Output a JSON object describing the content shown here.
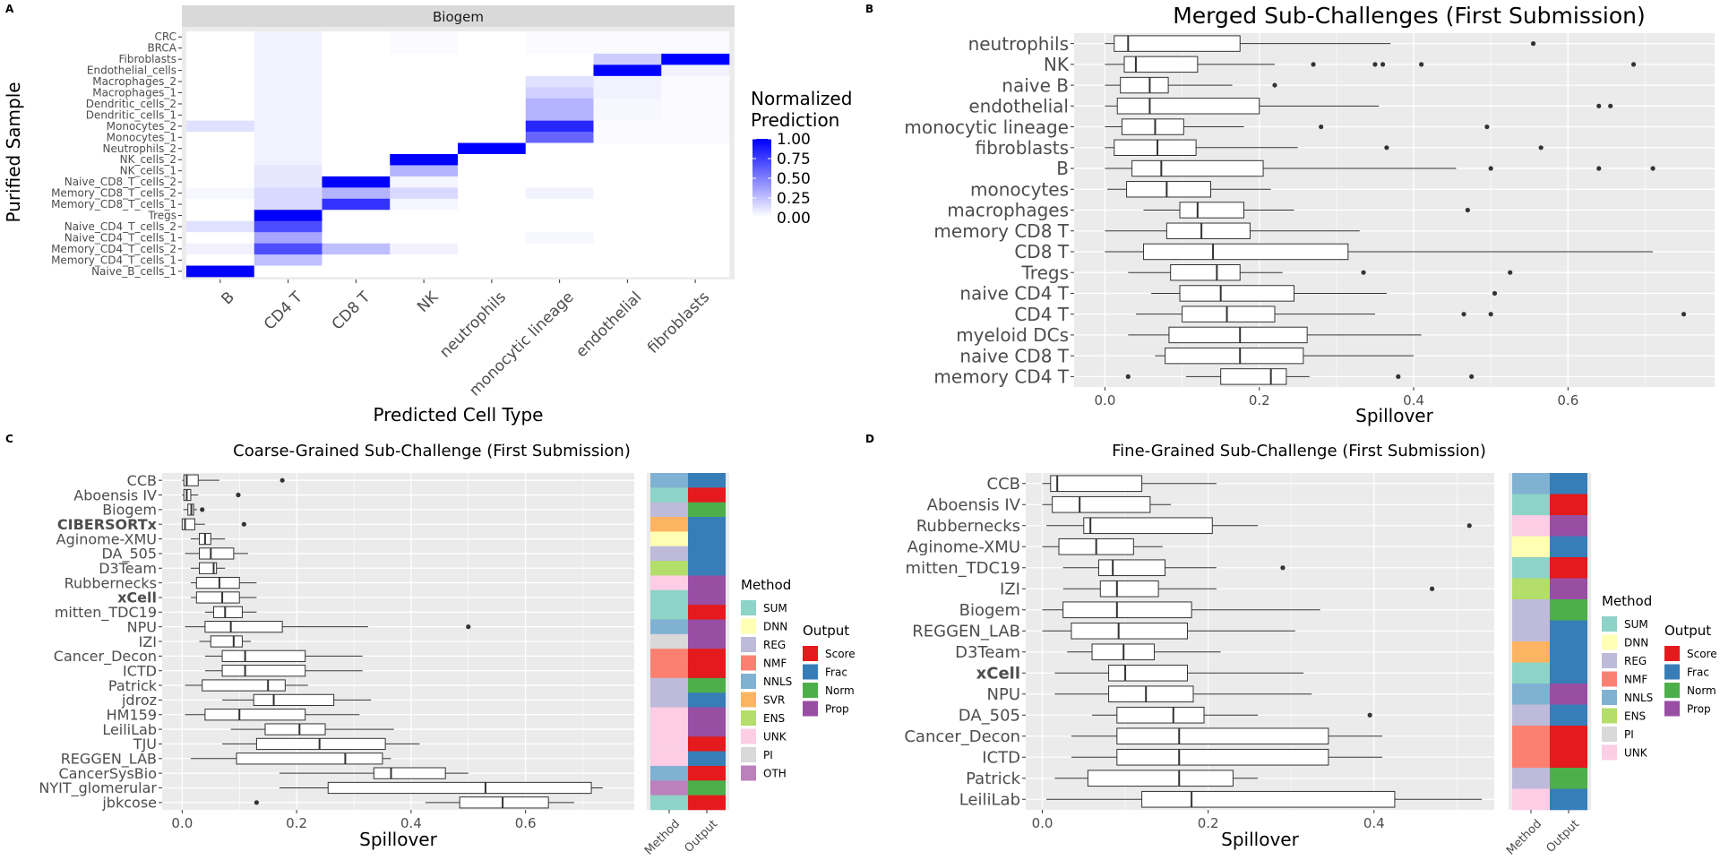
{
  "panels": {
    "A": {
      "tag": "A",
      "strip": "Biogem",
      "xlabel": "Predicted Cell Type",
      "ylabel": "Purified Sample",
      "legend_title": [
        "Normalized",
        "Prediction"
      ],
      "legend_ticks": [
        "1.00",
        "0.75",
        "0.50",
        "0.25",
        "0.00"
      ]
    },
    "B": {
      "tag": "B",
      "title": "Merged Sub-Challenges (First Submission)",
      "xlabel": "Spillover"
    },
    "C": {
      "tag": "C",
      "title": "Coarse-Grained Sub-Challenge (First Submission)",
      "xlabel": "Spillover",
      "side_labels": [
        "Method",
        "Output"
      ],
      "method_title": "Method",
      "output_title": "Output"
    },
    "D": {
      "tag": "D",
      "title": "Fine-Grained Sub-Challenge (First Submission)",
      "xlabel": "Spillover",
      "side_labels": [
        "Method",
        "Output"
      ],
      "method_title": "Method",
      "output_title": "Output"
    }
  },
  "colors": {
    "panel_bg": "#ebebeb",
    "grid": "#ffffff",
    "strip_bg": "#d9d9d9",
    "heat_high": "#0000ff",
    "methods": {
      "SUM": "#8dd3c7",
      "DNN": "#ffffb3",
      "REG": "#bebada",
      "NMF": "#fb8072",
      "NNLS": "#80b1d3",
      "SVR": "#fdb462",
      "ENS": "#b3de69",
      "UNK": "#fccde5",
      "PI": "#d9d9d9",
      "OTH": "#bc80bd"
    },
    "outputs": {
      "Score": "#e41a1c",
      "Frac": "#377eb8",
      "Norm": "#4daf4a",
      "Prop": "#984ea3"
    }
  },
  "chart_data": [
    {
      "id": "A",
      "type": "heatmap",
      "columns": [
        "B",
        "CD4 T",
        "CD8 T",
        "NK",
        "neutrophils",
        "monocytic lineage",
        "endothelial",
        "fibroblasts"
      ],
      "rows": [
        "CRC",
        "BRCA",
        "Fibroblasts",
        "Endothelial_cells",
        "Macrophages_2",
        "Macrophages_1",
        "Dendritic_cells_2",
        "Dendritic_cells_1",
        "Monocytes_2",
        "Monocytes_1",
        "Neutrophils_2",
        "NK_cells_2",
        "NK_cells_1",
        "Naive_CD8_T_cells_2",
        "Memory_CD8_T_cells_2",
        "Memory_CD8_T_cells_1",
        "Tregs",
        "Naive_CD4_T_cells_2",
        "Naive_CD4_T_cells_1",
        "Memory_CD4_T_cells_2",
        "Memory_CD4_T_cells_1",
        "Naive_B_cells_1"
      ],
      "values": [
        [
          0.0,
          0.05,
          0.0,
          0.02,
          0.0,
          0.02,
          0.02,
          0.02
        ],
        [
          0.0,
          0.05,
          0.0,
          0.02,
          0.0,
          0.02,
          0.02,
          0.02
        ],
        [
          0.0,
          0.05,
          0.0,
          0.0,
          0.0,
          0.0,
          0.2,
          1.0
        ],
        [
          0.0,
          0.05,
          0.0,
          0.0,
          0.0,
          0.0,
          1.0,
          0.05
        ],
        [
          0.0,
          0.05,
          0.0,
          0.0,
          0.0,
          0.12,
          0.05,
          0.02
        ],
        [
          0.0,
          0.05,
          0.0,
          0.0,
          0.0,
          0.18,
          0.05,
          0.02
        ],
        [
          0.0,
          0.05,
          0.0,
          0.0,
          0.0,
          0.3,
          0.03,
          0.02
        ],
        [
          0.0,
          0.05,
          0.0,
          0.0,
          0.0,
          0.3,
          0.03,
          0.02
        ],
        [
          0.12,
          0.05,
          0.0,
          0.0,
          0.0,
          0.85,
          0.02,
          0.02
        ],
        [
          0.0,
          0.05,
          0.0,
          0.0,
          0.0,
          0.6,
          0.02,
          0.02
        ],
        [
          0.0,
          0.05,
          0.0,
          0.0,
          1.0,
          0.0,
          0.0,
          0.0
        ],
        [
          0.0,
          0.05,
          0.0,
          1.0,
          0.0,
          0.0,
          0.0,
          0.0
        ],
        [
          0.0,
          0.1,
          0.0,
          0.3,
          0.0,
          0.0,
          0.0,
          0.0
        ],
        [
          0.0,
          0.1,
          1.0,
          0.04,
          0.0,
          0.0,
          0.0,
          0.0
        ],
        [
          0.03,
          0.15,
          0.3,
          0.15,
          0.0,
          0.05,
          0.0,
          0.0
        ],
        [
          0.0,
          0.15,
          0.8,
          0.04,
          0.0,
          0.0,
          0.0,
          0.0
        ],
        [
          0.0,
          1.0,
          0.0,
          0.0,
          0.0,
          0.0,
          0.0,
          0.0
        ],
        [
          0.12,
          0.7,
          0.0,
          0.0,
          0.0,
          0.0,
          0.0,
          0.0
        ],
        [
          0.0,
          0.35,
          0.0,
          0.0,
          0.0,
          0.03,
          0.0,
          0.0
        ],
        [
          0.05,
          0.7,
          0.25,
          0.05,
          0.0,
          0.0,
          0.0,
          0.0
        ],
        [
          0.0,
          0.25,
          0.0,
          0.0,
          0.0,
          0.0,
          0.0,
          0.0
        ],
        [
          1.0,
          0.0,
          0.0,
          0.0,
          0.0,
          0.0,
          0.0,
          0.0
        ]
      ],
      "legend_range": [
        0,
        1
      ]
    },
    {
      "id": "B",
      "type": "boxplot",
      "orientation": "horizontal",
      "xlim": [
        -0.04,
        0.79
      ],
      "xticks": [
        0.0,
        0.2,
        0.4,
        0.6
      ],
      "xtick_labels": [
        "0.0",
        "0.2",
        "0.4",
        "0.6"
      ],
      "categories": [
        "neutrophils",
        "NK",
        "naive B",
        "endothelial",
        "monocytic lineage",
        "fibroblasts",
        "B",
        "monocytes",
        "macrophages",
        "memory CD8 T",
        "CD8 T",
        "Tregs",
        "naive CD4 T",
        "CD4 T",
        "myeloid DCs",
        "naive CD8 T",
        "memory CD4 T"
      ],
      "boxes": [
        {
          "wmin": 0.0,
          "q1": 0.012,
          "median": 0.03,
          "q3": 0.175,
          "wmax": 0.37,
          "outliers": [
            0.555
          ]
        },
        {
          "wmin": 0.0,
          "q1": 0.025,
          "median": 0.04,
          "q3": 0.12,
          "wmax": 0.22,
          "outliers": [
            0.27,
            0.35,
            0.36,
            0.41,
            0.685
          ]
        },
        {
          "wmin": 0.0,
          "q1": 0.02,
          "median": 0.058,
          "q3": 0.082,
          "wmax": 0.165,
          "outliers": [
            0.22
          ]
        },
        {
          "wmin": 0.0,
          "q1": 0.016,
          "median": 0.058,
          "q3": 0.2,
          "wmax": 0.355,
          "outliers": [
            0.64,
            0.655
          ]
        },
        {
          "wmin": 0.0,
          "q1": 0.022,
          "median": 0.065,
          "q3": 0.102,
          "wmax": 0.18,
          "outliers": [
            0.28,
            0.495
          ]
        },
        {
          "wmin": 0.0,
          "q1": 0.012,
          "median": 0.068,
          "q3": 0.118,
          "wmax": 0.25,
          "outliers": [
            0.365,
            0.565
          ]
        },
        {
          "wmin": 0.0,
          "q1": 0.035,
          "median": 0.073,
          "q3": 0.205,
          "wmax": 0.455,
          "outliers": [
            0.5,
            0.64,
            0.71
          ]
        },
        {
          "wmin": 0.003,
          "q1": 0.028,
          "median": 0.08,
          "q3": 0.137,
          "wmax": 0.215,
          "outliers": []
        },
        {
          "wmin": 0.05,
          "q1": 0.097,
          "median": 0.12,
          "q3": 0.18,
          "wmax": 0.245,
          "outliers": [
            0.47
          ]
        },
        {
          "wmin": 0.0,
          "q1": 0.08,
          "median": 0.125,
          "q3": 0.188,
          "wmax": 0.33,
          "outliers": []
        },
        {
          "wmin": 0.0,
          "q1": 0.05,
          "median": 0.14,
          "q3": 0.315,
          "wmax": 0.71,
          "outliers": []
        },
        {
          "wmin": 0.03,
          "q1": 0.085,
          "median": 0.145,
          "q3": 0.175,
          "wmax": 0.23,
          "outliers": [
            0.335,
            0.525
          ]
        },
        {
          "wmin": 0.06,
          "q1": 0.097,
          "median": 0.15,
          "q3": 0.245,
          "wmax": 0.365,
          "outliers": [
            0.505
          ]
        },
        {
          "wmin": 0.04,
          "q1": 0.1,
          "median": 0.158,
          "q3": 0.22,
          "wmax": 0.35,
          "outliers": [
            0.465,
            0.5,
            0.75
          ]
        },
        {
          "wmin": 0.03,
          "q1": 0.083,
          "median": 0.175,
          "q3": 0.262,
          "wmax": 0.41,
          "outliers": []
        },
        {
          "wmin": 0.065,
          "q1": 0.078,
          "median": 0.175,
          "q3": 0.257,
          "wmax": 0.4,
          "outliers": []
        },
        {
          "wmin": 0.105,
          "q1": 0.15,
          "median": 0.215,
          "q3": 0.235,
          "wmax": 0.265,
          "outliers": [
            0.03,
            0.38,
            0.475
          ]
        }
      ]
    },
    {
      "id": "C",
      "type": "boxplot",
      "orientation": "horizontal",
      "xlim": [
        -0.035,
        0.79
      ],
      "xticks": [
        0.0,
        0.2,
        0.4,
        0.6
      ],
      "xtick_labels": [
        "0.0",
        "0.2",
        "0.4",
        "0.6"
      ],
      "categories": [
        "CCB",
        "Aboensis IV",
        "Biogem",
        "CIBERSORTx",
        "Aginome-XMU",
        "DA_505",
        "D3Team",
        "Rubbernecks",
        "xCell",
        "mitten_TDC19",
        "NPU",
        "IZI",
        "Cancer_Decon",
        "ICTD",
        "Patrick",
        "jdroz",
        "HM159",
        "LeiliLab",
        "TJU",
        "REGGEN_LAB",
        "CancerSysBio",
        "NYIT_glomerular",
        "jbkcose"
      ],
      "bold": [
        "CIBERSORTx",
        "xCell"
      ],
      "boxes": [
        {
          "wmin": 0.0,
          "q1": 0.003,
          "median": 0.008,
          "q3": 0.028,
          "wmax": 0.065,
          "outliers": [
            0.175
          ]
        },
        {
          "wmin": 0.0,
          "q1": 0.003,
          "median": 0.008,
          "q3": 0.015,
          "wmax": 0.028,
          "outliers": [
            0.098
          ]
        },
        {
          "wmin": 0.002,
          "q1": 0.01,
          "median": 0.016,
          "q3": 0.02,
          "wmax": 0.026,
          "outliers": [
            0.035
          ]
        },
        {
          "wmin": 0.0,
          "q1": 0.0,
          "median": 0.005,
          "q3": 0.022,
          "wmax": 0.04,
          "outliers": [
            0.108
          ]
        },
        {
          "wmin": 0.015,
          "q1": 0.03,
          "median": 0.04,
          "q3": 0.05,
          "wmax": 0.075,
          "outliers": []
        },
        {
          "wmin": 0.005,
          "q1": 0.03,
          "median": 0.05,
          "q3": 0.09,
          "wmax": 0.115,
          "outliers": []
        },
        {
          "wmin": 0.015,
          "q1": 0.03,
          "median": 0.055,
          "q3": 0.06,
          "wmax": 0.075,
          "outliers": []
        },
        {
          "wmin": 0.015,
          "q1": 0.025,
          "median": 0.065,
          "q3": 0.1,
          "wmax": 0.13,
          "outliers": []
        },
        {
          "wmin": 0.015,
          "q1": 0.025,
          "median": 0.07,
          "q3": 0.1,
          "wmax": 0.13,
          "outliers": []
        },
        {
          "wmin": 0.04,
          "q1": 0.055,
          "median": 0.075,
          "q3": 0.105,
          "wmax": 0.13,
          "outliers": []
        },
        {
          "wmin": 0.005,
          "q1": 0.04,
          "median": 0.085,
          "q3": 0.175,
          "wmax": 0.325,
          "outliers": [
            0.5
          ]
        },
        {
          "wmin": 0.03,
          "q1": 0.05,
          "median": 0.09,
          "q3": 0.105,
          "wmax": 0.12,
          "outliers": []
        },
        {
          "wmin": 0.04,
          "q1": 0.07,
          "median": 0.11,
          "q3": 0.215,
          "wmax": 0.315,
          "outliers": []
        },
        {
          "wmin": 0.04,
          "q1": 0.07,
          "median": 0.11,
          "q3": 0.215,
          "wmax": 0.315,
          "outliers": []
        },
        {
          "wmin": 0.005,
          "q1": 0.035,
          "median": 0.15,
          "q3": 0.18,
          "wmax": 0.22,
          "outliers": []
        },
        {
          "wmin": 0.07,
          "q1": 0.125,
          "median": 0.16,
          "q3": 0.265,
          "wmax": 0.33,
          "outliers": []
        },
        {
          "wmin": 0.005,
          "q1": 0.04,
          "median": 0.1,
          "q3": 0.215,
          "wmax": 0.31,
          "outliers": []
        },
        {
          "wmin": 0.085,
          "q1": 0.145,
          "median": 0.205,
          "q3": 0.25,
          "wmax": 0.37,
          "outliers": []
        },
        {
          "wmin": 0.07,
          "q1": 0.13,
          "median": 0.24,
          "q3": 0.355,
          "wmax": 0.415,
          "outliers": []
        },
        {
          "wmin": 0.015,
          "q1": 0.095,
          "median": 0.285,
          "q3": 0.35,
          "wmax": 0.365,
          "outliers": []
        },
        {
          "wmin": 0.17,
          "q1": 0.335,
          "median": 0.365,
          "q3": 0.46,
          "wmax": 0.5,
          "outliers": []
        },
        {
          "wmin": 0.17,
          "q1": 0.255,
          "median": 0.53,
          "q3": 0.715,
          "wmax": 0.735,
          "outliers": []
        },
        {
          "wmin": 0.425,
          "q1": 0.485,
          "median": 0.56,
          "q3": 0.64,
          "wmax": 0.685,
          "outliers": [
            0.13
          ]
        }
      ],
      "method_col": [
        "NNLS",
        "SUM",
        "REG",
        "SVR",
        "DNN",
        "REG",
        "ENS",
        "UNK",
        "SUM",
        "SUM",
        "NNLS",
        "PI",
        "NMF",
        "NMF",
        "REG",
        "REG",
        "UNK",
        "UNK",
        "UNK",
        "UNK",
        "NNLS",
        "OTH",
        "SUM"
      ],
      "output_col": [
        "Frac",
        "Score",
        "Norm",
        "Frac",
        "Frac",
        "Frac",
        "Frac",
        "Prop",
        "Prop",
        "Score",
        "Prop",
        "Prop",
        "Score",
        "Score",
        "Norm",
        "Frac",
        "Prop",
        "Prop",
        "Score",
        "Frac",
        "Score",
        "Norm",
        "Score"
      ],
      "method_legend": [
        "SUM",
        "DNN",
        "REG",
        "NMF",
        "NNLS",
        "SVR",
        "ENS",
        "UNK",
        "PI",
        "OTH"
      ],
      "output_legend": [
        "Score",
        "Frac",
        "Norm",
        "Prop"
      ]
    },
    {
      "id": "D",
      "type": "boxplot",
      "orientation": "horizontal",
      "xlim": [
        -0.02,
        0.545
      ],
      "xticks": [
        0.0,
        0.2,
        0.4
      ],
      "xtick_labels": [
        "0.0",
        "0.2",
        "0.4"
      ],
      "categories": [
        "CCB",
        "Aboensis IV",
        "Rubbernecks",
        "Aginome-XMU",
        "mitten_TDC19",
        "IZI",
        "Biogem",
        "REGGEN_LAB",
        "D3Team",
        "xCell",
        "NPU",
        "DA_505",
        "Cancer_Decon",
        "ICTD",
        "Patrick",
        "LeiliLab"
      ],
      "bold": [
        "xCell"
      ],
      "boxes": [
        {
          "wmin": 0.0,
          "q1": 0.01,
          "median": 0.018,
          "q3": 0.12,
          "wmax": 0.21,
          "outliers": []
        },
        {
          "wmin": 0.0,
          "q1": 0.012,
          "median": 0.045,
          "q3": 0.13,
          "wmax": 0.155,
          "outliers": []
        },
        {
          "wmin": 0.005,
          "q1": 0.05,
          "median": 0.058,
          "q3": 0.205,
          "wmax": 0.26,
          "outliers": [
            0.515
          ]
        },
        {
          "wmin": 0.0,
          "q1": 0.02,
          "median": 0.065,
          "q3": 0.11,
          "wmax": 0.145,
          "outliers": []
        },
        {
          "wmin": 0.025,
          "q1": 0.068,
          "median": 0.085,
          "q3": 0.148,
          "wmax": 0.21,
          "outliers": [
            0.29
          ]
        },
        {
          "wmin": 0.025,
          "q1": 0.07,
          "median": 0.09,
          "q3": 0.14,
          "wmax": 0.21,
          "outliers": [
            0.47
          ]
        },
        {
          "wmin": 0.0,
          "q1": 0.025,
          "median": 0.09,
          "q3": 0.18,
          "wmax": 0.335,
          "outliers": []
        },
        {
          "wmin": 0.0,
          "q1": 0.035,
          "median": 0.092,
          "q3": 0.175,
          "wmax": 0.305,
          "outliers": []
        },
        {
          "wmin": 0.03,
          "q1": 0.06,
          "median": 0.098,
          "q3": 0.135,
          "wmax": 0.215,
          "outliers": []
        },
        {
          "wmin": 0.015,
          "q1": 0.08,
          "median": 0.1,
          "q3": 0.175,
          "wmax": 0.315,
          "outliers": []
        },
        {
          "wmin": 0.015,
          "q1": 0.08,
          "median": 0.125,
          "q3": 0.182,
          "wmax": 0.325,
          "outliers": []
        },
        {
          "wmin": 0.06,
          "q1": 0.09,
          "median": 0.158,
          "q3": 0.195,
          "wmax": 0.26,
          "outliers": [
            0.395
          ]
        },
        {
          "wmin": 0.035,
          "q1": 0.09,
          "median": 0.165,
          "q3": 0.345,
          "wmax": 0.41,
          "outliers": []
        },
        {
          "wmin": 0.035,
          "q1": 0.09,
          "median": 0.165,
          "q3": 0.345,
          "wmax": 0.41,
          "outliers": []
        },
        {
          "wmin": 0.015,
          "q1": 0.055,
          "median": 0.165,
          "q3": 0.23,
          "wmax": 0.26,
          "outliers": []
        },
        {
          "wmin": 0.005,
          "q1": 0.12,
          "median": 0.18,
          "q3": 0.425,
          "wmax": 0.53,
          "outliers": []
        }
      ],
      "method_col": [
        "NNLS",
        "SUM",
        "UNK",
        "DNN",
        "SUM",
        "ENS",
        "REG",
        "REG",
        "SVR",
        "SUM",
        "NNLS",
        "REG",
        "NMF",
        "NMF",
        "REG",
        "UNK"
      ],
      "output_col": [
        "Frac",
        "Score",
        "Prop",
        "Frac",
        "Score",
        "Prop",
        "Norm",
        "Frac",
        "Frac",
        "Frac",
        "Prop",
        "Frac",
        "Score",
        "Score",
        "Norm",
        "Frac"
      ],
      "method_legend": [
        "SUM",
        "DNN",
        "REG",
        "NMF",
        "NNLS",
        "ENS",
        "PI",
        "UNK"
      ],
      "output_legend": [
        "Score",
        "Frac",
        "Norm",
        "Prop"
      ]
    }
  ]
}
